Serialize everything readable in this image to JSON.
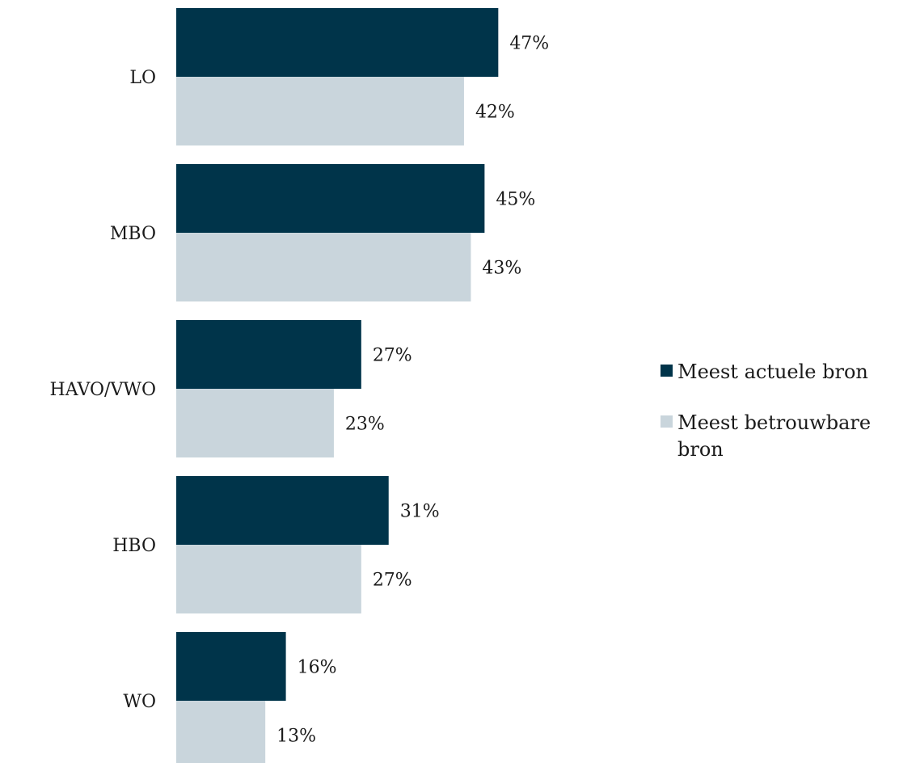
{
  "chart_data": {
    "type": "bar",
    "orientation": "horizontal",
    "categories": [
      "LO",
      "MBO",
      "HAVO/VWO",
      "HBO",
      "WO"
    ],
    "series": [
      {
        "name": "Meest actuele bron",
        "values": [
          47,
          45,
          27,
          31,
          16
        ],
        "labels": [
          "47%",
          "45%",
          "27%",
          "31%",
          "16%"
        ],
        "color": "#00344a"
      },
      {
        "name": "Meest betrouwbare bron",
        "values": [
          42,
          43,
          23,
          27,
          13
        ],
        "labels": [
          "42%",
          "43%",
          "23%",
          "27%",
          "13%"
        ],
        "color": "#c9d5dc"
      }
    ],
    "title": "",
    "xlabel": "",
    "ylabel": "",
    "xlim": [
      0,
      100
    ],
    "grid": false,
    "legend_position": "right"
  }
}
